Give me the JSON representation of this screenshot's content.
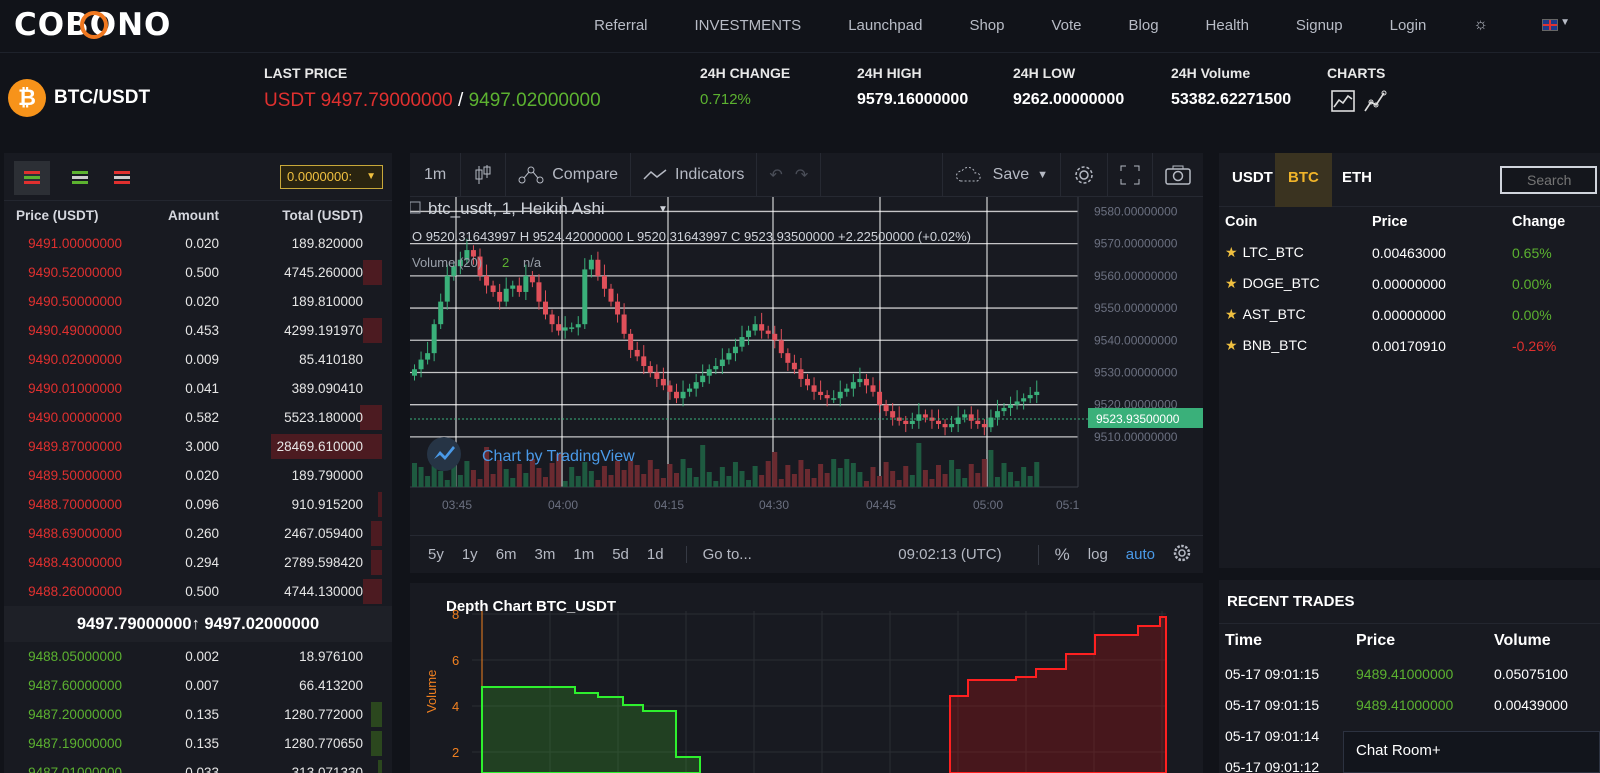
{
  "nav": {
    "logo": "COBONO",
    "links": [
      "Referral",
      "INVESTMENTS",
      "Launchpad",
      "Shop",
      "Vote",
      "Blog",
      "Health",
      "Signup",
      "Login"
    ],
    "theme_icon": "sun-icon",
    "language_icon": "uk-flag-icon"
  },
  "ticker": {
    "pair": "BTC/USDT",
    "coin_icon": "bitcoin-icon",
    "last_price_label": "LAST PRICE",
    "last_price_red": "USDT 9497.79000000",
    "last_price_sep": " / ",
    "last_price_green": "9497.02000000",
    "change_label": "24H CHANGE",
    "change_value": "0.712%",
    "high_label": "24H HIGH",
    "high_value": "9579.16000000",
    "low_label": "24H LOW",
    "low_value": "9262.00000000",
    "volume_label": "24H Volume",
    "volume_value": "53382.62271500",
    "charts_label": "CHARTS"
  },
  "orderbook": {
    "precision": "0.0000000:",
    "headers": [
      "Price (USDT)",
      "Amount",
      "Total (USDT)"
    ],
    "asks": [
      {
        "price": "9491.00000000",
        "amount": "0.020",
        "total": "189.820000",
        "depth": 0
      },
      {
        "price": "9490.52000000",
        "amount": "0.500",
        "total": "4745.260000",
        "depth": 0.05
      },
      {
        "price": "9490.50000000",
        "amount": "0.020",
        "total": "189.810000",
        "depth": 0
      },
      {
        "price": "9490.49000000",
        "amount": "0.453",
        "total": "4299.191970",
        "depth": 0.05
      },
      {
        "price": "9490.02000000",
        "amount": "0.009",
        "total": "85.410180",
        "depth": 0
      },
      {
        "price": "9490.01000000",
        "amount": "0.041",
        "total": "389.090410",
        "depth": 0
      },
      {
        "price": "9490.00000000",
        "amount": "0.582",
        "total": "5523.180000",
        "depth": 0.06
      },
      {
        "price": "9489.87000000",
        "amount": "3.000",
        "total": "28469.610000",
        "depth": 0.3
      },
      {
        "price": "9489.50000000",
        "amount": "0.020",
        "total": "189.790000",
        "depth": 0
      },
      {
        "price": "9488.70000000",
        "amount": "0.096",
        "total": "910.915200",
        "depth": 0.01
      },
      {
        "price": "9488.69000000",
        "amount": "0.260",
        "total": "2467.059400",
        "depth": 0.03
      },
      {
        "price": "9488.43000000",
        "amount": "0.294",
        "total": "2789.598420",
        "depth": 0.03
      },
      {
        "price": "9488.26000000",
        "amount": "0.500",
        "total": "4744.130000",
        "depth": 0.05
      }
    ],
    "mid": "9497.79000000↑ 9497.02000000",
    "bids": [
      {
        "price": "9488.05000000",
        "amount": "0.002",
        "total": "18.976100",
        "depth": 0
      },
      {
        "price": "9487.60000000",
        "amount": "0.007",
        "total": "66.413200",
        "depth": 0
      },
      {
        "price": "9487.20000000",
        "amount": "0.135",
        "total": "1280.772000",
        "depth": 0.03
      },
      {
        "price": "9487.19000000",
        "amount": "0.135",
        "total": "1280.770650",
        "depth": 0.03
      },
      {
        "price": "9487.01000000",
        "amount": "0.033",
        "total": "313.071330",
        "depth": 0.01
      }
    ]
  },
  "tradingview": {
    "interval": "1m",
    "compare": "Compare",
    "indicators": "Indicators",
    "save": "Save",
    "symbol_title": "btc_usdt, 1, Heikin Ashi",
    "ohlc": "O 9520.31643997  H 9524.42000000  L 9520.31643997  C 9523.93500000  +2.22500000 (+0.02%)",
    "volume_label": "Volume (20)",
    "volume_value": "2",
    "volume_na": "n/a",
    "watermark": "Chart by TradingView",
    "current_price": "9523.93500000",
    "price_ticks": [
      "9580.00000000",
      "9570.00000000",
      "9560.00000000",
      "9550.00000000",
      "9540.00000000",
      "9530.00000000",
      "9520.00000000",
      "9510.00000000"
    ],
    "time_ticks": [
      "03:45",
      "04:00",
      "04:15",
      "04:30",
      "04:45",
      "05:00",
      "05:1"
    ],
    "ranges": [
      "5y",
      "1y",
      "6m",
      "3m",
      "1m",
      "5d",
      "1d"
    ],
    "goto": "Go to...",
    "clock": "09:02:13 (UTC)",
    "percent": "%",
    "log": "log",
    "auto": "auto"
  },
  "depth_chart": {
    "title": "Depth Chart BTC_USDT",
    "ylabel": "Volume",
    "y_ticks": [
      "8",
      "6",
      "4",
      "2"
    ]
  },
  "market": {
    "tabs": [
      "USDT",
      "BTC",
      "ETH"
    ],
    "active_tab": "BTC",
    "search_placeholder": "Search",
    "headers": [
      "Coin",
      "Price",
      "Change"
    ],
    "rows": [
      {
        "coin": "LTC_BTC",
        "price": "0.00463000",
        "change": "0.65%",
        "dir": "up"
      },
      {
        "coin": "DOGE_BTC",
        "price": "0.00000000",
        "change": "0.00%",
        "dir": "up"
      },
      {
        "coin": "AST_BTC",
        "price": "0.00000000",
        "change": "0.00%",
        "dir": "up"
      },
      {
        "coin": "BNB_BTC",
        "price": "0.00170910",
        "change": "-0.26%",
        "dir": "down"
      }
    ]
  },
  "trades": {
    "title": "RECENT TRADES",
    "headers": [
      "Time",
      "Price",
      "Volume"
    ],
    "rows": [
      {
        "time": "05-17 09:01:15",
        "price": "9489.41000000",
        "volume": "0.05075100"
      },
      {
        "time": "05-17 09:01:15",
        "price": "9489.41000000",
        "volume": "0.00439000"
      },
      {
        "time": "05-17 09:01:14",
        "price": "",
        "volume": ""
      },
      {
        "time": "05-17 09:01:12",
        "price": "",
        "volume": ""
      }
    ]
  },
  "chat": {
    "label": "Chat Room+"
  },
  "colors": {
    "up": "#5cb230",
    "down": "#e0302f",
    "accent": "#f0b429",
    "candle_up": "#3ab07a",
    "candle_down": "#e0505a"
  }
}
